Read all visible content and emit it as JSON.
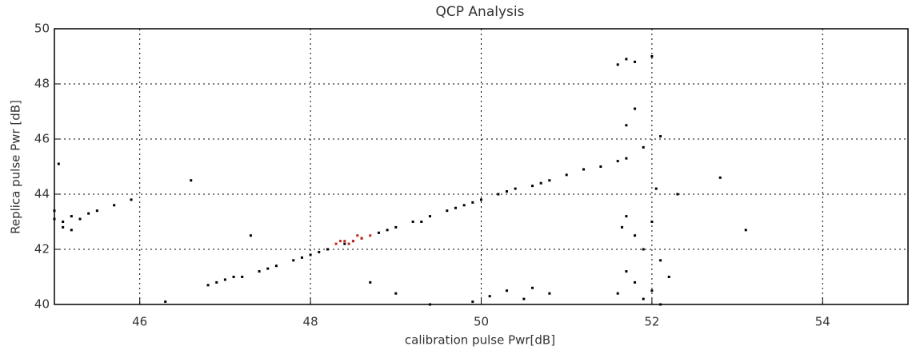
{
  "chart_data": {
    "type": "scatter",
    "title": "QCP Analysis",
    "x_label": "calibration pulse Pwr[dB]",
    "y_label": "Replica pulse Pwr [dB]",
    "xlim": [
      45,
      55
    ],
    "ylim": [
      40,
      50
    ],
    "xticks": [
      46,
      48,
      50,
      52,
      54
    ],
    "yticks": [
      40,
      42,
      44,
      46,
      48,
      50
    ],
    "grid": true,
    "series": [
      {
        "color": "#000000",
        "x": [
          46.8,
          47.0,
          47.2,
          47.4,
          47.6,
          47.8,
          48.0,
          48.2,
          48.4,
          48.6,
          48.8,
          49.0,
          49.2,
          49.4,
          49.6,
          49.8,
          50.0,
          50.2,
          50.4,
          50.6,
          50.8,
          51.0,
          51.2,
          51.4,
          51.6,
          51.7,
          46.9,
          47.1,
          47.5,
          47.9,
          48.1,
          48.5,
          48.9,
          49.3,
          49.7,
          49.9,
          50.3,
          50.7,
          45.0,
          45.1,
          45.2,
          45.3,
          45.4,
          45.5,
          45.1,
          45.2,
          45.0,
          45.7,
          45.9,
          45.05,
          51.6,
          51.7,
          51.8,
          52.0,
          51.8,
          51.7,
          52.1,
          51.9,
          51.7,
          52.0,
          51.8,
          51.9,
          52.1,
          51.7,
          51.8,
          52.0,
          51.9,
          52.1,
          51.6,
          52.2,
          51.65,
          52.05,
          50.1,
          50.3,
          50.5,
          50.6,
          49.9,
          50.8,
          49.0,
          48.7,
          49.4,
          46.3,
          47.3,
          46.6,
          52.8,
          53.1,
          52.3
        ],
        "values": [
          40.7,
          40.9,
          41.0,
          41.2,
          41.4,
          41.6,
          41.8,
          42.0,
          42.2,
          42.4,
          42.6,
          42.8,
          43.0,
          43.2,
          43.4,
          43.6,
          43.8,
          44.0,
          44.2,
          44.3,
          44.5,
          44.7,
          44.9,
          45.0,
          45.2,
          45.3,
          40.8,
          41.0,
          41.3,
          41.7,
          41.9,
          42.3,
          42.7,
          43.0,
          43.5,
          43.7,
          44.1,
          44.4,
          43.1,
          43.0,
          43.2,
          43.1,
          43.3,
          43.4,
          42.8,
          42.7,
          43.4,
          43.6,
          43.8,
          45.1,
          48.7,
          48.9,
          48.8,
          49.0,
          47.1,
          46.5,
          46.1,
          45.7,
          43.2,
          43.0,
          42.5,
          42.0,
          41.6,
          41.2,
          40.8,
          40.5,
          40.2,
          40.0,
          40.4,
          41.0,
          42.8,
          44.2,
          40.3,
          40.5,
          40.2,
          40.6,
          40.1,
          40.4,
          40.4,
          40.8,
          40.0,
          40.1,
          42.5,
          44.5,
          44.6,
          42.7,
          44.0
        ]
      },
      {
        "color": "#c0281c",
        "x": [
          48.3,
          48.4,
          48.5,
          48.6,
          48.7,
          48.45,
          48.55,
          48.35
        ],
        "values": [
          42.2,
          42.3,
          42.3,
          42.4,
          42.5,
          42.2,
          42.5,
          42.3
        ]
      }
    ]
  }
}
